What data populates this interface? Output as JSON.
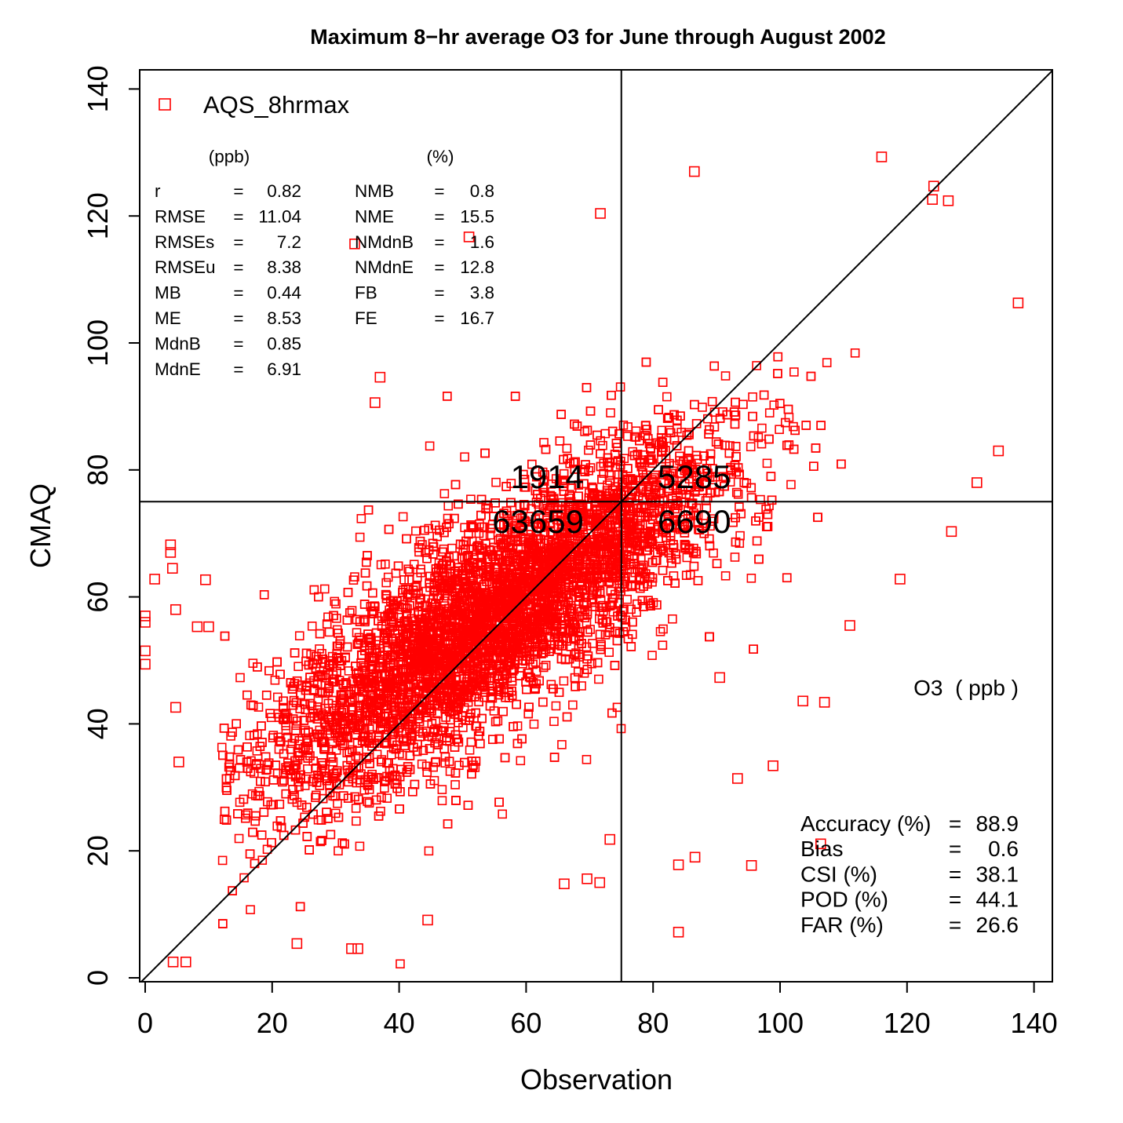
{
  "chart_data": {
    "type": "scatter",
    "title": "Maximum 8−hr average O3 for June through August 2002",
    "xlabel": "Observation",
    "ylabel": "CMAQ",
    "xlim": [
      0,
      140
    ],
    "ylim": [
      0,
      140
    ],
    "xticks": [
      "0",
      "20",
      "40",
      "60",
      "80",
      "100",
      "120",
      "140"
    ],
    "yticks": [
      "0",
      "20",
      "40",
      "60",
      "80",
      "100",
      "120",
      "140"
    ],
    "grid": false,
    "legend": {
      "placement": "top-left",
      "entries": [
        {
          "name": "AQS_8hrmax",
          "marker": "open-square",
          "color": "#ff0000"
        }
      ]
    },
    "marker_color": "#ff0000",
    "reference_lines": {
      "one_to_one": true,
      "threshold_x": 75,
      "threshold_y": 75
    },
    "quadrant_counts": {
      "upper_left": "1914",
      "upper_right": "5285",
      "lower_left": "63659",
      "lower_right": "6690"
    },
    "unit_label": "O3  ( ppb )",
    "stats_headers": {
      "ppb": "(ppb)",
      "pct": "(%)"
    },
    "stats_ppb": [
      {
        "label": "r",
        "value": "0.82"
      },
      {
        "label": "RMSE",
        "value": "11.04"
      },
      {
        "label": "RMSEs",
        "value": "7.2"
      },
      {
        "label": "RMSEu",
        "value": "8.38"
      },
      {
        "label": "MB",
        "value": "0.44"
      },
      {
        "label": "ME",
        "value": "8.53"
      },
      {
        "label": "MdnB",
        "value": "0.85"
      },
      {
        "label": "MdnE",
        "value": "6.91"
      }
    ],
    "stats_pct": [
      {
        "label": "NMB",
        "value": "0.8"
      },
      {
        "label": "NME",
        "value": "15.5"
      },
      {
        "label": "NMdnB",
        "value": "1.6"
      },
      {
        "label": "NMdnE",
        "value": "12.8"
      },
      {
        "label": "FB",
        "value": "3.8"
      },
      {
        "label": "FE",
        "value": "16.7"
      }
    ],
    "categorical_stats": [
      {
        "label": "Accuracy (%)",
        "value": "88.9"
      },
      {
        "label": "Bias",
        "value": "0.6"
      },
      {
        "label": "CSI (%)",
        "value": "38.1"
      },
      {
        "label": "POD (%)",
        "value": "44.1"
      },
      {
        "label": "FAR (%)",
        "value": "26.6"
      }
    ],
    "equals": "=",
    "dense_cloud": {
      "obs_mean": 55,
      "obs_sd": 18,
      "obs_min": 12,
      "obs_max": 112,
      "slope": 0.63,
      "intercept": 22,
      "noise_sd": 7.5
    },
    "points": [
      [
        137.5,
        106.3
      ],
      [
        116,
        129.3
      ],
      [
        86.5,
        127
      ],
      [
        71.7,
        120.4
      ],
      [
        134.4,
        83
      ],
      [
        131,
        78
      ],
      [
        106.4,
        21.1
      ],
      [
        84,
        17.8
      ],
      [
        86.6,
        19
      ],
      [
        95.5,
        17.7
      ],
      [
        84,
        7.2
      ],
      [
        107,
        43.4
      ],
      [
        103.6,
        43.6
      ],
      [
        111,
        55.5
      ],
      [
        118.9,
        62.8
      ],
      [
        33.5,
        4.6
      ],
      [
        32.5,
        4.6
      ],
      [
        44.5,
        9.1
      ],
      [
        23.9,
        5.4
      ],
      [
        6.4,
        2.5
      ],
      [
        4.4,
        2.5
      ],
      [
        0,
        57
      ],
      [
        0,
        56
      ],
      [
        0,
        51.5
      ],
      [
        0,
        49.4
      ],
      [
        1.5,
        62.8
      ],
      [
        4,
        68.2
      ],
      [
        4,
        67
      ],
      [
        4.3,
        64.5
      ],
      [
        4.8,
        58
      ],
      [
        4.8,
        42.6
      ],
      [
        5.3,
        34
      ],
      [
        9.5,
        62.7
      ],
      [
        8.2,
        55.3
      ],
      [
        10,
        55.3
      ],
      [
        36.2,
        90.6
      ],
      [
        37,
        94.6
      ],
      [
        33,
        115.6
      ],
      [
        51,
        116.7
      ],
      [
        66,
        14.8
      ],
      [
        69.6,
        15.6
      ],
      [
        71.6,
        15
      ],
      [
        90.5,
        47.3
      ],
      [
        98.9,
        33.4
      ],
      [
        93.3,
        31.4
      ],
      [
        127,
        70.3
      ],
      [
        124.2,
        124.7
      ],
      [
        124,
        122.6
      ],
      [
        126.5,
        122.4
      ],
      [
        73.2,
        21.8
      ]
    ]
  }
}
